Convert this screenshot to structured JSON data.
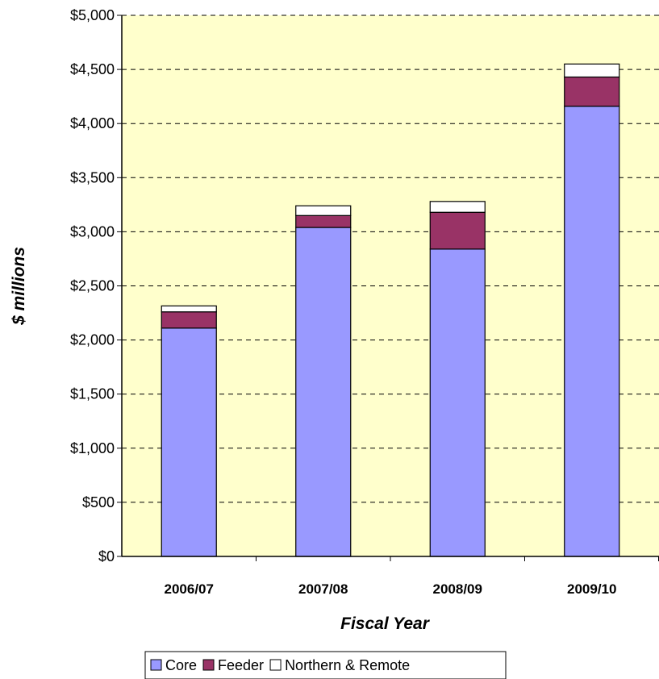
{
  "chart_data": {
    "type": "bar",
    "stacked": true,
    "categories": [
      "2006/07",
      "2007/08",
      "2008/09",
      "2009/10"
    ],
    "series": [
      {
        "name": "Core",
        "values": [
          2110,
          3040,
          2840,
          4160
        ],
        "color": "#9999FF"
      },
      {
        "name": "Feeder",
        "values": [
          150,
          110,
          340,
          270
        ],
        "color": "#993366"
      },
      {
        "name": "Northern & Remote",
        "values": [
          55,
          90,
          100,
          120
        ],
        "color": "#FFFFFF"
      }
    ],
    "xlabel": "Fiscal Year",
    "ylabel": "$ millions",
    "ylim": [
      0,
      5000
    ],
    "yticks": [
      0,
      500,
      1000,
      1500,
      2000,
      2500,
      3000,
      3500,
      4000,
      4500,
      5000
    ],
    "ytick_labels": [
      "$0",
      "$500",
      "$1,000",
      "$1,500",
      "$2,000",
      "$2,500",
      "$3,000",
      "$3,500",
      "$4,000",
      "$4,500",
      "$5,000"
    ],
    "grid": true,
    "legend_position": "bottom",
    "plot_background": "#FFFFCC"
  }
}
